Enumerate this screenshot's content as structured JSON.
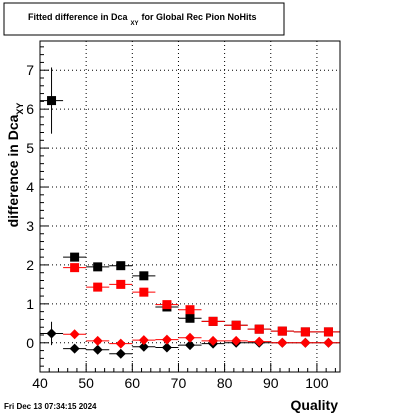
{
  "footer": {
    "timestamp": "Fri Dec 13 07:34:15 2024"
  },
  "chart_data": {
    "type": "scatter",
    "title": "Fitted difference in Dca",
    "title_subscript": "XY",
    "title_suffix": "for Global Rec Pion NoHits",
    "xlabel": "Quality",
    "ylabel": "difference in Dca",
    "ylabel_subscript": "XY",
    "xlim": [
      40,
      105
    ],
    "ylim": [
      -0.75,
      7.75
    ],
    "x_ticks": [
      40,
      50,
      60,
      70,
      80,
      90,
      100
    ],
    "y_ticks": [
      0,
      1,
      2,
      3,
      4,
      5,
      6,
      7
    ],
    "grid": true,
    "x_error": 2.5,
    "series": [
      {
        "marker": "square",
        "color": "#000000",
        "points": [
          {
            "x": 42.5,
            "y": 6.22,
            "yerr": 0.85
          },
          {
            "x": 47.5,
            "y": 2.2,
            "yerr": 0.06
          },
          {
            "x": 52.5,
            "y": 1.95,
            "yerr": 0.05
          },
          {
            "x": 57.5,
            "y": 1.98,
            "yerr": 0.05
          },
          {
            "x": 62.5,
            "y": 1.72,
            "yerr": 0.05
          },
          {
            "x": 67.5,
            "y": 0.92,
            "yerr": 0.05
          },
          {
            "x": 72.5,
            "y": 0.63,
            "yerr": 0.05
          },
          {
            "x": 77.5,
            "y": 0.55,
            "yerr": 0.04
          },
          {
            "x": 82.5,
            "y": 0.45,
            "yerr": 0.04
          },
          {
            "x": 87.5,
            "y": 0.35,
            "yerr": 0.04
          },
          {
            "x": 92.5,
            "y": 0.3,
            "yerr": 0.04
          },
          {
            "x": 97.5,
            "y": 0.28,
            "yerr": 0.04
          },
          {
            "x": 102.5,
            "y": 0.28,
            "yerr": 0.04
          }
        ]
      },
      {
        "marker": "square",
        "color": "#ff0000",
        "points": [
          {
            "x": 47.5,
            "y": 1.93,
            "yerr": 0.06
          },
          {
            "x": 52.5,
            "y": 1.43,
            "yerr": 0.05
          },
          {
            "x": 57.5,
            "y": 1.5,
            "yerr": 0.05
          },
          {
            "x": 62.5,
            "y": 1.3,
            "yerr": 0.05
          },
          {
            "x": 67.5,
            "y": 0.98,
            "yerr": 0.05
          },
          {
            "x": 72.5,
            "y": 0.85,
            "yerr": 0.05
          },
          {
            "x": 77.5,
            "y": 0.55,
            "yerr": 0.04
          },
          {
            "x": 82.5,
            "y": 0.45,
            "yerr": 0.04
          },
          {
            "x": 87.5,
            "y": 0.35,
            "yerr": 0.04
          },
          {
            "x": 92.5,
            "y": 0.3,
            "yerr": 0.04
          },
          {
            "x": 97.5,
            "y": 0.28,
            "yerr": 0.04
          },
          {
            "x": 102.5,
            "y": 0.28,
            "yerr": 0.04
          }
        ]
      },
      {
        "marker": "diamond",
        "color": "#000000",
        "points": [
          {
            "x": 42.5,
            "y": 0.24,
            "yerr": 0.3
          },
          {
            "x": 47.5,
            "y": -0.15,
            "yerr": 0.05
          },
          {
            "x": 52.5,
            "y": -0.18,
            "yerr": 0.05
          },
          {
            "x": 57.5,
            "y": -0.28,
            "yerr": 0.05
          },
          {
            "x": 62.5,
            "y": -0.1,
            "yerr": 0.04
          },
          {
            "x": 67.5,
            "y": -0.12,
            "yerr": 0.04
          },
          {
            "x": 72.5,
            "y": -0.06,
            "yerr": 0.04
          },
          {
            "x": 77.5,
            "y": -0.02,
            "yerr": 0.04
          },
          {
            "x": 82.5,
            "y": 0.0,
            "yerr": 0.04
          },
          {
            "x": 87.5,
            "y": 0.0,
            "yerr": 0.04
          },
          {
            "x": 92.5,
            "y": 0.0,
            "yerr": 0.04
          },
          {
            "x": 97.5,
            "y": 0.0,
            "yerr": 0.04
          },
          {
            "x": 102.5,
            "y": 0.0,
            "yerr": 0.04
          }
        ]
      },
      {
        "marker": "diamond",
        "color": "#ff0000",
        "points": [
          {
            "x": 47.5,
            "y": 0.22,
            "yerr": 0.04
          },
          {
            "x": 52.5,
            "y": 0.05,
            "yerr": 0.04
          },
          {
            "x": 57.5,
            "y": -0.02,
            "yerr": 0.04
          },
          {
            "x": 62.5,
            "y": 0.07,
            "yerr": 0.04
          },
          {
            "x": 67.5,
            "y": 0.08,
            "yerr": 0.04
          },
          {
            "x": 72.5,
            "y": 0.13,
            "yerr": 0.04
          },
          {
            "x": 77.5,
            "y": 0.05,
            "yerr": 0.04
          },
          {
            "x": 82.5,
            "y": 0.05,
            "yerr": 0.04
          },
          {
            "x": 87.5,
            "y": 0.03,
            "yerr": 0.04
          },
          {
            "x": 92.5,
            "y": 0.0,
            "yerr": 0.04
          },
          {
            "x": 97.5,
            "y": 0.0,
            "yerr": 0.04
          },
          {
            "x": 102.5,
            "y": 0.0,
            "yerr": 0.04
          }
        ]
      }
    ]
  }
}
